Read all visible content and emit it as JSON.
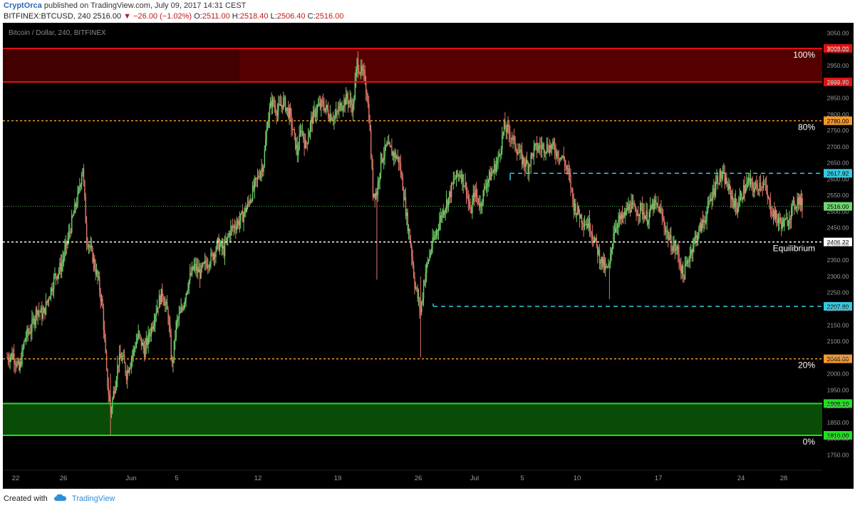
{
  "header": {
    "author": "CryptOrca",
    "published_text": "published on TradingView.com, July 09, 2017 14:31 CEST",
    "symbol": "BITFINEX:BTCUSD, 240",
    "last": "2516.00",
    "change": "−26.00 (−1.02%)",
    "open_label": "O:",
    "open": "2511.00",
    "high_label": "H:",
    "high": "2518.40",
    "low_label": "L:",
    "low": "2506.40",
    "close_label": "C:",
    "close": "2516.00"
  },
  "footer": {
    "created_with": "Created with",
    "brand": "TradingView"
  },
  "colors": {
    "bg": "#000000",
    "up": "#6fcf6a",
    "down": "#e0776a",
    "red_zone": "#e01010",
    "green_zone": "#1fe01f",
    "fib": "#f59a2c",
    "cyan": "#35c9e0",
    "price_line": "#58a858",
    "white": "#ffffff"
  },
  "chart_data": {
    "type": "candlestick",
    "title": "Bitcoin / Dollar, 240, BITFINEX",
    "x_ticks": [
      "22",
      "26",
      "Jun",
      "5",
      "12",
      "19",
      "26",
      "Jul",
      "5",
      "10",
      "17",
      "24",
      "28"
    ],
    "y_ticks": [
      "3050.00",
      "3000.00",
      "2950.00",
      "2900.00",
      "2850.00",
      "2800.00",
      "2750.00",
      "2700.00",
      "2650.00",
      "2600.00",
      "2550.00",
      "2500.00",
      "2450.00",
      "2400.00",
      "2350.00",
      "2300.00",
      "2250.00",
      "2200.00",
      "2150.00",
      "2100.00",
      "2050.00",
      "2000.00",
      "1950.00",
      "1900.00",
      "1850.00",
      "1800.00",
      "1750.00"
    ],
    "ylim": [
      1720,
      3060
    ],
    "zones": [
      {
        "from": 2899.7,
        "to": 3003.0,
        "color": "red"
      },
      {
        "from": 1810.0,
        "to": 1908.1,
        "color": "green"
      }
    ],
    "levels": [
      {
        "price": "3003.00",
        "label": "100%",
        "style": "red"
      },
      {
        "price": "2899.70",
        "label": "",
        "style": "red"
      },
      {
        "price": "2780.00",
        "label": "80%",
        "style": "fib"
      },
      {
        "price": "2617.92",
        "label": "",
        "style": "cyan"
      },
      {
        "price": "2516.00",
        "label": "",
        "style": "last"
      },
      {
        "price": "2406.22",
        "label": "Equilibrium",
        "style": "white"
      },
      {
        "price": "2207.80",
        "label": "",
        "style": "cyan"
      },
      {
        "price": "2046.00",
        "label": "20%",
        "style": "fib"
      },
      {
        "price": "1908.10",
        "label": "",
        "style": "green"
      },
      {
        "price": "1810.00",
        "label": "0%",
        "style": "green"
      }
    ],
    "path": [
      [
        0,
        2050
      ],
      [
        6,
        2060
      ],
      [
        12,
        2010
      ],
      [
        18,
        2110
      ],
      [
        24,
        2140
      ],
      [
        30,
        2200
      ],
      [
        36,
        2180
      ],
      [
        42,
        2240
      ],
      [
        48,
        2300
      ],
      [
        54,
        2330
      ],
      [
        60,
        2400
      ],
      [
        66,
        2480
      ],
      [
        72,
        2560
      ],
      [
        76,
        2640
      ],
      [
        80,
        2420
      ],
      [
        86,
        2360
      ],
      [
        92,
        2280
      ],
      [
        96,
        2200
      ],
      [
        100,
        2000
      ],
      [
        104,
        1880
      ],
      [
        108,
        1960
      ],
      [
        112,
        2040
      ],
      [
        116,
        2050
      ],
      [
        120,
        2000
      ],
      [
        126,
        2060
      ],
      [
        132,
        2120
      ],
      [
        138,
        2070
      ],
      [
        144,
        2130
      ],
      [
        150,
        2200
      ],
      [
        156,
        2250
      ],
      [
        162,
        2180
      ],
      [
        166,
        2020
      ],
      [
        170,
        2150
      ],
      [
        176,
        2200
      ],
      [
        182,
        2280
      ],
      [
        188,
        2330
      ],
      [
        194,
        2310
      ],
      [
        200,
        2340
      ],
      [
        206,
        2360
      ],
      [
        212,
        2400
      ],
      [
        218,
        2380
      ],
      [
        224,
        2440
      ],
      [
        230,
        2460
      ],
      [
        236,
        2480
      ],
      [
        242,
        2520
      ],
      [
        248,
        2570
      ],
      [
        254,
        2620
      ],
      [
        258,
        2650
      ],
      [
        262,
        2780
      ],
      [
        266,
        2840
      ],
      [
        272,
        2810
      ],
      [
        278,
        2840
      ],
      [
        284,
        2800
      ],
      [
        288,
        2740
      ],
      [
        292,
        2680
      ],
      [
        296,
        2760
      ],
      [
        300,
        2700
      ],
      [
        306,
        2780
      ],
      [
        312,
        2820
      ],
      [
        318,
        2830
      ],
      [
        324,
        2800
      ],
      [
        330,
        2790
      ],
      [
        336,
        2830
      ],
      [
        342,
        2850
      ],
      [
        348,
        2820
      ],
      [
        352,
        2960
      ],
      [
        356,
        2930
      ],
      [
        360,
        2910
      ],
      [
        364,
        2800
      ],
      [
        368,
        2560
      ],
      [
        372,
        2560
      ],
      [
        376,
        2660
      ],
      [
        382,
        2700
      ],
      [
        388,
        2680
      ],
      [
        394,
        2660
      ],
      [
        398,
        2580
      ],
      [
        402,
        2480
      ],
      [
        406,
        2400
      ],
      [
        410,
        2280
      ],
      [
        416,
        2190
      ],
      [
        420,
        2300
      ],
      [
        426,
        2380
      ],
      [
        432,
        2440
      ],
      [
        438,
        2500
      ],
      [
        444,
        2540
      ],
      [
        450,
        2600
      ],
      [
        456,
        2620
      ],
      [
        462,
        2570
      ],
      [
        466,
        2490
      ],
      [
        470,
        2560
      ],
      [
        476,
        2520
      ],
      [
        482,
        2590
      ],
      [
        488,
        2620
      ],
      [
        494,
        2660
      ],
      [
        500,
        2760
      ],
      [
        506,
        2740
      ],
      [
        512,
        2700
      ],
      [
        518,
        2660
      ],
      [
        524,
        2640
      ],
      [
        530,
        2690
      ],
      [
        536,
        2700
      ],
      [
        542,
        2700
      ],
      [
        548,
        2700
      ],
      [
        554,
        2680
      ],
      [
        560,
        2660
      ],
      [
        566,
        2600
      ],
      [
        570,
        2520
      ],
      [
        574,
        2500
      ],
      [
        580,
        2470
      ],
      [
        586,
        2460
      ],
      [
        592,
        2400
      ],
      [
        596,
        2360
      ],
      [
        602,
        2320
      ],
      [
        606,
        2330
      ],
      [
        610,
        2440
      ],
      [
        614,
        2470
      ],
      [
        620,
        2480
      ],
      [
        626,
        2520
      ],
      [
        632,
        2500
      ],
      [
        638,
        2510
      ],
      [
        644,
        2480
      ],
      [
        650,
        2520
      ],
      [
        656,
        2510
      ],
      [
        662,
        2450
      ],
      [
        668,
        2400
      ],
      [
        674,
        2380
      ],
      [
        680,
        2300
      ],
      [
        686,
        2360
      ],
      [
        690,
        2400
      ],
      [
        696,
        2440
      ],
      [
        702,
        2480
      ],
      [
        708,
        2540
      ],
      [
        714,
        2600
      ],
      [
        718,
        2610
      ],
      [
        722,
        2600
      ],
      [
        728,
        2550
      ],
      [
        734,
        2510
      ],
      [
        740,
        2560
      ],
      [
        746,
        2590
      ],
      [
        752,
        2570
      ],
      [
        758,
        2590
      ],
      [
        762,
        2580
      ],
      [
        766,
        2530
      ],
      [
        770,
        2500
      ],
      [
        776,
        2470
      ],
      [
        782,
        2460
      ],
      [
        786,
        2480
      ],
      [
        790,
        2510
      ],
      [
        796,
        2540
      ],
      [
        800,
        2516
      ]
    ]
  }
}
